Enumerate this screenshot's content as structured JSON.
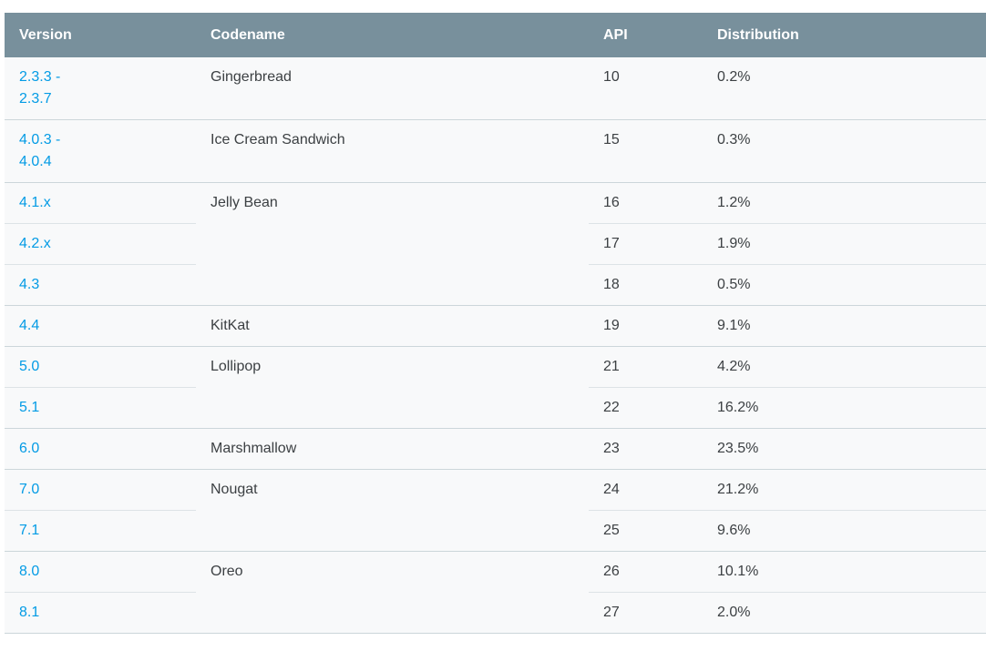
{
  "table": {
    "columns": [
      "Version",
      "Codename",
      "API",
      "Distribution"
    ],
    "groups": [
      {
        "codename": "Gingerbread",
        "rows": [
          {
            "version": "2.3.3 -\n2.3.7",
            "api": "10",
            "distribution": "0.2%"
          }
        ]
      },
      {
        "codename": "Ice Cream Sandwich",
        "rows": [
          {
            "version": "4.0.3 -\n4.0.4",
            "api": "15",
            "distribution": "0.3%"
          }
        ]
      },
      {
        "codename": "Jelly Bean",
        "rows": [
          {
            "version": "4.1.x",
            "api": "16",
            "distribution": "1.2%"
          },
          {
            "version": "4.2.x",
            "api": "17",
            "distribution": "1.9%"
          },
          {
            "version": "4.3",
            "api": "18",
            "distribution": "0.5%"
          }
        ]
      },
      {
        "codename": "KitKat",
        "rows": [
          {
            "version": "4.4",
            "api": "19",
            "distribution": "9.1%"
          }
        ]
      },
      {
        "codename": "Lollipop",
        "rows": [
          {
            "version": "5.0",
            "api": "21",
            "distribution": "4.2%"
          },
          {
            "version": "5.1",
            "api": "22",
            "distribution": "16.2%"
          }
        ]
      },
      {
        "codename": "Marshmallow",
        "rows": [
          {
            "version": "6.0",
            "api": "23",
            "distribution": "23.5%"
          }
        ]
      },
      {
        "codename": "Nougat",
        "rows": [
          {
            "version": "7.0",
            "api": "24",
            "distribution": "21.2%"
          },
          {
            "version": "7.1",
            "api": "25",
            "distribution": "9.6%"
          }
        ]
      },
      {
        "codename": "Oreo",
        "rows": [
          {
            "version": "8.0",
            "api": "26",
            "distribution": "10.1%"
          },
          {
            "version": "8.1",
            "api": "27",
            "distribution": "2.0%"
          }
        ]
      }
    ],
    "colors": {
      "header_bg": "#78909c",
      "header_text": "#ffffff",
      "row_bg": "#f8f9fa",
      "link": "#039be5",
      "text": "#3c4043",
      "inner_border": "#dde3e6",
      "group_border": "#ccd6da"
    }
  }
}
